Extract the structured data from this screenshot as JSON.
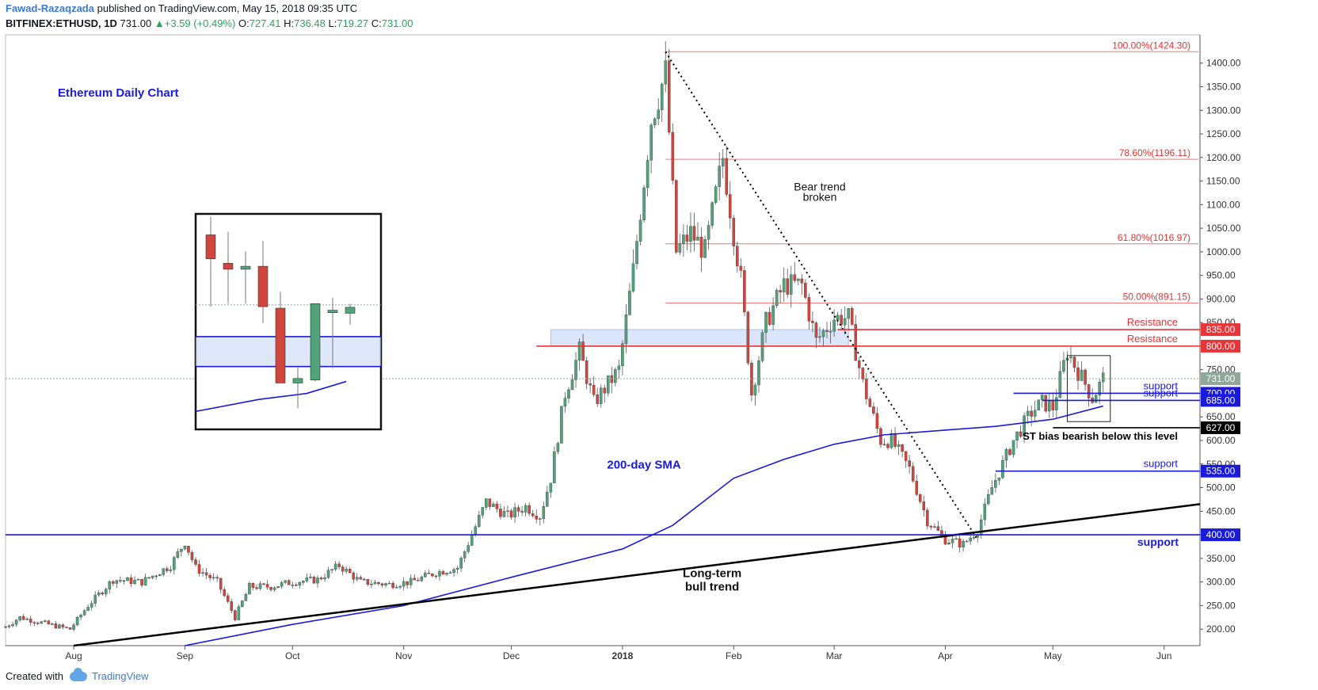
{
  "header": {
    "author": "Fawad-Razaqzada",
    "published": "published on TradingView.com, May 15, 2018 09:35 UTC",
    "symbol": "BITFINEX:ETHUSD, 1D",
    "last": "731.00",
    "change": "+3.59 (+0.49%)",
    "open_label": "O:",
    "open": "727.41",
    "high_label": "H:",
    "high": "736.48",
    "low_label": "L:",
    "low": "719.27",
    "close_label": "C:",
    "close": "731.00"
  },
  "footer": {
    "created_with": "Created with",
    "brand": "TradingView"
  },
  "colors": {
    "up": "#53a37a",
    "down": "#d0463e",
    "blue": "#1a1adb",
    "red": "#e8353a",
    "black": "#000000",
    "zone": "#c9d9f7"
  },
  "chart_data": {
    "type": "candlestick",
    "title": "Ethereum Daily Chart",
    "y_ticks": [
      200,
      250,
      300,
      350,
      400,
      450,
      500,
      550,
      600,
      650,
      700,
      750,
      800,
      850,
      900,
      950,
      1000,
      1050,
      1100,
      1150,
      1200,
      1250,
      1300,
      1350,
      1400
    ],
    "x_ticks": [
      {
        "label": "Aug",
        "date": "2017-08-01"
      },
      {
        "label": "Sep",
        "date": "2017-09-01"
      },
      {
        "label": "Oct",
        "date": "2017-10-01"
      },
      {
        "label": "Nov",
        "date": "2017-11-01"
      },
      {
        "label": "Dec",
        "date": "2017-12-01"
      },
      {
        "label": "2018",
        "date": "2018-01-01",
        "bold": true
      },
      {
        "label": "Feb",
        "date": "2018-02-01"
      },
      {
        "label": "Mar",
        "date": "2018-03-01"
      },
      {
        "label": "Apr",
        "date": "2018-04-01"
      },
      {
        "label": "May",
        "date": "2018-05-01"
      },
      {
        "label": "Jun",
        "date": "2018-06-01"
      }
    ],
    "x_range": [
      "2017-07-13",
      "2018-06-11"
    ],
    "y_range": [
      165,
      1460
    ],
    "price_path": [
      [
        "2017-07-13",
        205
      ],
      [
        "2017-07-17",
        225
      ],
      [
        "2017-07-25",
        210
      ],
      [
        "2017-07-31",
        200
      ],
      [
        "2017-08-05",
        250
      ],
      [
        "2017-08-12",
        305
      ],
      [
        "2017-08-20",
        300
      ],
      [
        "2017-08-28",
        335
      ],
      [
        "2017-09-01",
        385
      ],
      [
        "2017-09-04",
        330
      ],
      [
        "2017-09-10",
        300
      ],
      [
        "2017-09-15",
        225
      ],
      [
        "2017-09-19",
        290
      ],
      [
        "2017-09-25",
        290
      ],
      [
        "2017-10-01",
        300
      ],
      [
        "2017-10-08",
        305
      ],
      [
        "2017-10-14",
        335
      ],
      [
        "2017-10-20",
        300
      ],
      [
        "2017-10-28",
        295
      ],
      [
        "2017-11-03",
        300
      ],
      [
        "2017-11-10",
        320
      ],
      [
        "2017-11-16",
        330
      ],
      [
        "2017-11-24",
        470
      ],
      [
        "2017-11-30",
        440
      ],
      [
        "2017-12-05",
        460
      ],
      [
        "2017-12-09",
        440
      ],
      [
        "2017-12-12",
        520
      ],
      [
        "2017-12-16",
        700
      ],
      [
        "2017-12-20",
        790
      ],
      [
        "2017-12-24",
        680
      ],
      [
        "2017-12-28",
        720
      ],
      [
        "2017-12-31",
        750
      ],
      [
        "2018-01-04",
        960
      ],
      [
        "2018-01-09",
        1280
      ],
      [
        "2018-01-13",
        1380
      ],
      [
        "2018-01-16",
        1000
      ],
      [
        "2018-01-20",
        1040
      ],
      [
        "2018-01-24",
        1000
      ],
      [
        "2018-01-29",
        1200
      ],
      [
        "2018-02-01",
        1040
      ],
      [
        "2018-02-03",
        940
      ],
      [
        "2018-02-06",
        700
      ],
      [
        "2018-02-10",
        850
      ],
      [
        "2018-02-15",
        930
      ],
      [
        "2018-02-20",
        930
      ],
      [
        "2018-02-24",
        810
      ],
      [
        "2018-03-01",
        860
      ],
      [
        "2018-03-05",
        860
      ],
      [
        "2018-03-09",
        720
      ],
      [
        "2018-03-14",
        600
      ],
      [
        "2018-03-17",
        600
      ],
      [
        "2018-03-22",
        540
      ],
      [
        "2018-03-27",
        430
      ],
      [
        "2018-04-01",
        390
      ],
      [
        "2018-04-06",
        380
      ],
      [
        "2018-04-10",
        410
      ],
      [
        "2018-04-14",
        500
      ],
      [
        "2018-04-20",
        600
      ],
      [
        "2018-04-25",
        660
      ],
      [
        "2018-04-28",
        680
      ],
      [
        "2018-05-01",
        670
      ],
      [
        "2018-05-05",
        790
      ],
      [
        "2018-05-07",
        760
      ],
      [
        "2018-05-10",
        720
      ],
      [
        "2018-05-12",
        690
      ],
      [
        "2018-05-15",
        731
      ]
    ],
    "sma200": [
      [
        "2017-09-01",
        165
      ],
      [
        "2017-10-01",
        210
      ],
      [
        "2017-11-01",
        250
      ],
      [
        "2017-12-01",
        310
      ],
      [
        "2018-01-01",
        370
      ],
      [
        "2018-01-15",
        420
      ],
      [
        "2018-02-01",
        520
      ],
      [
        "2018-02-15",
        560
      ],
      [
        "2018-03-01",
        592
      ],
      [
        "2018-03-15",
        612
      ],
      [
        "2018-04-01",
        622
      ],
      [
        "2018-04-15",
        630
      ],
      [
        "2018-05-01",
        645
      ],
      [
        "2018-05-15",
        673
      ]
    ],
    "bull_trendline": [
      [
        "2017-08-01",
        165
      ],
      [
        "2018-06-11",
        465
      ]
    ],
    "bear_trendline": [
      [
        "2018-01-13",
        1424
      ],
      [
        "2018-04-10",
        390
      ]
    ],
    "fibonacci": [
      {
        "label": "100.00%(1424.30)",
        "value": 1424.3
      },
      {
        "label": "78.60%(1196.11)",
        "value": 1196.11
      },
      {
        "label": "61.80%(1016.97)",
        "value": 1016.97
      },
      {
        "label": "50.00%(891.15)",
        "value": 891.15
      }
    ],
    "levels": [
      {
        "value": 835,
        "tag": "835.00",
        "color": "#e8353a",
        "text": "Resistance",
        "start": "2018-03-02"
      },
      {
        "value": 800,
        "tag": "800.00",
        "color": "#e8353a",
        "text": "Resistance",
        "start": "2017-12-08"
      },
      {
        "value": 731,
        "tag": "731.00",
        "color": "#8fa89a",
        "text": "",
        "start": "2017-07-13"
      },
      {
        "value": 700,
        "tag": "700.00",
        "color": "#1a1adb",
        "text": "support",
        "start": "2018-04-20"
      },
      {
        "value": 685,
        "tag": "685.00",
        "color": "#1a1adb",
        "text": "support",
        "start": "2018-04-28"
      },
      {
        "value": 627,
        "tag": "627.00",
        "color": "#000000",
        "text": "ST bias bearish below this level",
        "start": "2018-05-01"
      },
      {
        "value": 535,
        "tag": "535.00",
        "color": "#1a1adb",
        "text": "support",
        "start": "2018-04-15"
      },
      {
        "value": 400,
        "tag": "400.00",
        "color": "#1a1adb",
        "text": "support",
        "start": "2017-07-13"
      }
    ],
    "zone": {
      "from": "2017-12-12",
      "to": "2018-03-05",
      "low": 800,
      "high": 835
    },
    "annotations": [
      {
        "text": "Bear trend",
        "date": "2018-02-25",
        "value": 1130
      },
      {
        "text": "broken",
        "date": "2018-02-25",
        "value": 1108
      },
      {
        "text": "200-day SMA",
        "date": "2018-01-07",
        "value": 540
      },
      {
        "text": "Long-term",
        "date": "2018-01-26",
        "value": 310
      },
      {
        "text": "bull trend",
        "date": "2018-01-26",
        "value": 282
      }
    ],
    "inset_candles": [
      {
        "o": 1000,
        "h": 1060,
        "l": 760,
        "c": 920
      },
      {
        "o": 905,
        "h": 1010,
        "l": 770,
        "c": 885
      },
      {
        "o": 885,
        "h": 945,
        "l": 770,
        "c": 895
      },
      {
        "o": 895,
        "h": 980,
        "l": 705,
        "c": 760
      },
      {
        "o": 755,
        "h": 810,
        "l": 580,
        "c": 505
      },
      {
        "o": 505,
        "h": 560,
        "l": 420,
        "c": 520
      },
      {
        "o": 515,
        "h": 730,
        "l": 510,
        "c": 770
      },
      {
        "o": 740,
        "h": 790,
        "l": 555,
        "c": 748
      },
      {
        "o": 738,
        "h": 770,
        "l": 700,
        "c": 758
      }
    ]
  }
}
